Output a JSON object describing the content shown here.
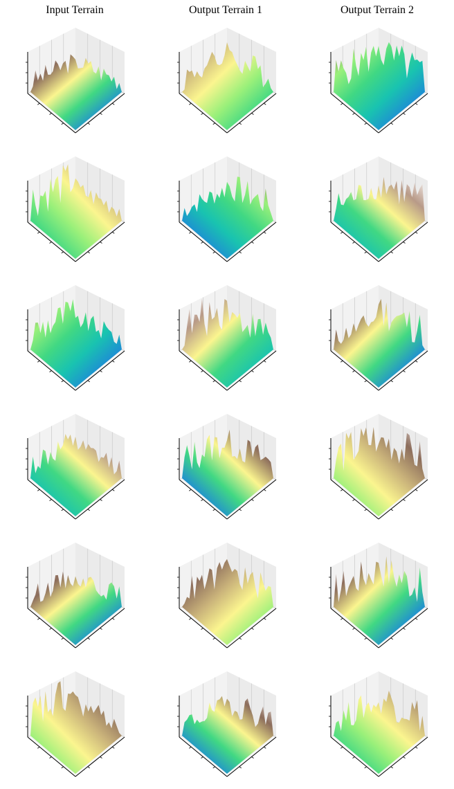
{
  "columns": [
    "Input Terrain",
    "Output Terrain 1",
    "Output Terrain 2"
  ],
  "palette": {
    "deep": "#1f3fbf",
    "blue": "#1e8ad6",
    "cyan": "#19c3b0",
    "green": "#41d883",
    "lightgreen": "#9af07a",
    "yellow": "#fbf58f",
    "tan": "#c9b27a",
    "brown": "#8c6d5c",
    "lightbrown": "#b89a88",
    "white": "#f7f2f2",
    "pane": "#f2f2f2",
    "grid": "#c9c9c9",
    "axis": "#000000"
  },
  "rows": 6
}
